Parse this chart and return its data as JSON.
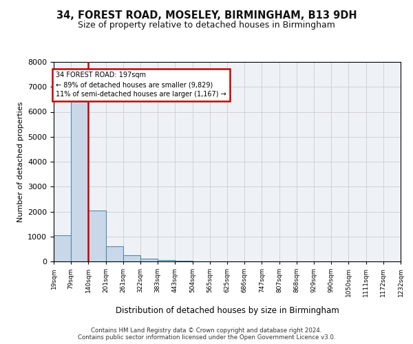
{
  "title_line1": "34, FOREST ROAD, MOSELEY, BIRMINGHAM, B13 9DH",
  "title_line2": "Size of property relative to detached houses in Birmingham",
  "xlabel": "Distribution of detached houses by size in Birmingham",
  "ylabel": "Number of detached properties",
  "footer_line1": "Contains HM Land Registry data © Crown copyright and database right 2024.",
  "footer_line2": "Contains public sector information licensed under the Open Government Licence v3.0.",
  "bin_labels": [
    "19sqm",
    "79sqm",
    "140sqm",
    "201sqm",
    "261sqm",
    "322sqm",
    "383sqm",
    "443sqm",
    "504sqm",
    "565sqm",
    "625sqm",
    "686sqm",
    "747sqm",
    "807sqm",
    "868sqm",
    "929sqm",
    "990sqm",
    "1050sqm",
    "1111sqm",
    "1172sqm",
    "1232sqm"
  ],
  "bar_values": [
    1050,
    6550,
    2050,
    600,
    250,
    120,
    55,
    25,
    10,
    5,
    0,
    0,
    0,
    0,
    0,
    0,
    0,
    0,
    0,
    0
  ],
  "bar_color": "#c8d8e8",
  "bar_edge_color": "#5588aa",
  "grid_color": "#cccccc",
  "property_line_x": 2.0,
  "annotation_text_line1": "34 FOREST ROAD: 197sqm",
  "annotation_text_line2": "← 89% of detached houses are smaller (9,829)",
  "annotation_text_line3": "11% of semi-detached houses are larger (1,167) →",
  "annotation_box_color": "#ffffff",
  "annotation_box_edge_color": "#cc0000",
  "property_line_color": "#cc0000",
  "ylim": [
    0,
    8000
  ],
  "yticks": [
    0,
    1000,
    2000,
    3000,
    4000,
    5000,
    6000,
    7000,
    8000
  ],
  "bg_color": "#eef2f7"
}
